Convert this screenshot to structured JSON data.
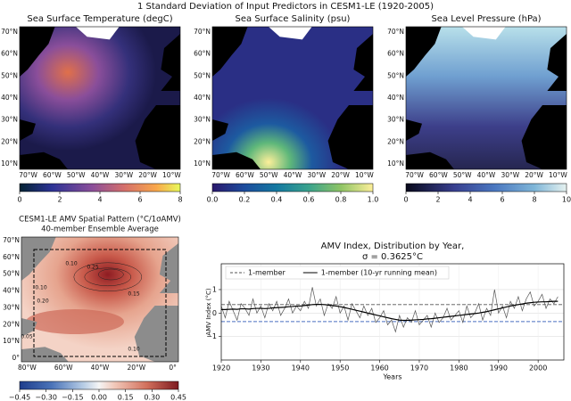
{
  "title": "1 Standard Deviation of Input Predictors in CESM1-LE (1920-2005)",
  "maps": [
    {
      "title": "Sea Surface Temperature (degC)",
      "colorbar_lim": [
        0,
        8
      ],
      "colorbar_ticks": [
        0,
        2,
        4,
        6,
        8
      ],
      "lat_labels": [
        "70°N",
        "60°N",
        "50°N",
        "40°N",
        "30°N",
        "20°N",
        "10°N"
      ],
      "lon_labels": [
        "70°W",
        "60°W",
        "50°W",
        "40°W",
        "30°W",
        "20°W",
        "10°W"
      ]
    },
    {
      "title": "Sea Surface Salinity (psu)",
      "colorbar_lim": [
        0,
        1
      ],
      "colorbar_ticks": [
        {
          "value": 0,
          "label": "0.0"
        },
        0.2,
        0.4,
        0.6,
        0.8,
        {
          "value": 1,
          "label": "1.0"
        }
      ],
      "lat_labels": [
        "70°N",
        "60°N",
        "50°N",
        "40°N",
        "30°N",
        "20°N",
        "10°N"
      ],
      "lon_labels": [
        "70°W",
        "60°W",
        "50°W",
        "40°W",
        "30°W",
        "20°W",
        "10°W"
      ]
    },
    {
      "title": "Sea Level Pressure (hPa)",
      "colorbar_lim": [
        0,
        10
      ],
      "colorbar_ticks": [
        0,
        2,
        4,
        6,
        8,
        10
      ],
      "lat_labels": [
        "70°N",
        "60°N",
        "50°N",
        "40°N",
        "30°N",
        "20°N",
        "10°N"
      ],
      "lon_labels": [
        "70°W",
        "60°W",
        "50°W",
        "40°W",
        "30°W",
        "20°W",
        "10°W"
      ]
    }
  ],
  "amv_map": {
    "title": "CESM1-LE AMV Spatial Pattern (°C/1σAMV)",
    "subtitle": "40-member Ensemble Average",
    "colorbar_lim": [
      -0.45,
      0.45
    ],
    "colorbar_ticks": [
      {
        "value": -0.45,
        "label": "−0.45"
      },
      {
        "value": -0.3,
        "label": "−0.30"
      },
      {
        "value": -0.15,
        "label": "−0.15"
      },
      {
        "value": 0,
        "label": "0.00"
      },
      {
        "value": 0.15,
        "label": "0.15"
      },
      {
        "value": 0.3,
        "label": "0.30"
      },
      {
        "value": 0.45,
        "label": "0.45"
      }
    ],
    "lat_labels": [
      "70°N",
      "60°N",
      "50°N",
      "40°N",
      "30°N",
      "20°N",
      "10°N",
      "0°"
    ],
    "lon_labels": [
      "80°W",
      "60°W",
      "40°W",
      "20°W",
      "0°"
    ],
    "contour_labels": [
      "0.25",
      "0.10",
      "0.15",
      "0.20",
      "0.10",
      "0.05",
      "0.10"
    ]
  },
  "chart_data": {
    "type": "line",
    "title": "AMV Index, Distribution by Year,",
    "subtitle": "σ = 0.3625°C",
    "x_label": "Years",
    "y_label": "AMV Index (°C)",
    "x": [
      1920,
      1921,
      1922,
      1923,
      1924,
      1925,
      1926,
      1927,
      1928,
      1929,
      1930,
      1931,
      1932,
      1933,
      1934,
      1935,
      1936,
      1937,
      1938,
      1939,
      1940,
      1941,
      1942,
      1943,
      1944,
      1945,
      1946,
      1947,
      1948,
      1949,
      1950,
      1951,
      1952,
      1953,
      1954,
      1955,
      1956,
      1957,
      1958,
      1959,
      1960,
      1961,
      1962,
      1963,
      1964,
      1965,
      1966,
      1967,
      1968,
      1969,
      1970,
      1971,
      1972,
      1973,
      1974,
      1975,
      1976,
      1977,
      1978,
      1979,
      1980,
      1981,
      1982,
      1983,
      1984,
      1985,
      1986,
      1987,
      1988,
      1989,
      1990,
      1991,
      1992,
      1993,
      1994,
      1995,
      1996,
      1997,
      1998,
      1999,
      2000,
      2001,
      2002,
      2003,
      2004,
      2005
    ],
    "series": [
      {
        "name": "1-member",
        "color": "#555555",
        "style": "dashed",
        "values": [
          0.3,
          -0.2,
          0.5,
          0.1,
          -0.3,
          0.4,
          0.2,
          -0.1,
          0.6,
          0.0,
          0.3,
          -0.2,
          0.4,
          0.1,
          0.5,
          -0.1,
          0.2,
          0.6,
          0.0,
          0.3,
          0.1,
          0.5,
          0.2,
          1.1,
          0.3,
          0.6,
          -0.1,
          0.4,
          0.2,
          0.7,
          0.0,
          0.3,
          -0.3,
          0.4,
          0.1,
          -0.2,
          0.3,
          -0.1,
          0.2,
          -0.4,
          -0.2,
          0.1,
          -0.5,
          -0.3,
          -0.8,
          -0.1,
          -0.6,
          -0.2,
          -0.4,
          0.1,
          -0.5,
          -0.3,
          -0.1,
          -0.6,
          0.0,
          -0.4,
          -0.2,
          0.2,
          -0.3,
          -0.1,
          0.1,
          -0.4,
          0.3,
          -0.2,
          0.0,
          0.4,
          -0.3,
          0.2,
          -0.1,
          1.0,
          0.0,
          0.3,
          -0.2,
          0.5,
          0.2,
          0.7,
          0.1,
          0.6,
          0.9,
          0.3,
          0.5,
          0.8,
          0.2,
          0.6,
          0.4,
          0.7
        ]
      },
      {
        "name": "1-member (10-yr running mean)",
        "color": "#000000",
        "style": "solid",
        "values": [
          0.15,
          0.15,
          0.16,
          0.17,
          0.16,
          0.18,
          0.18,
          0.17,
          0.19,
          0.2,
          0.2,
          0.19,
          0.2,
          0.22,
          0.23,
          0.24,
          0.25,
          0.27,
          0.28,
          0.3,
          0.3,
          0.32,
          0.34,
          0.36,
          0.37,
          0.37,
          0.36,
          0.34,
          0.32,
          0.3,
          0.27,
          0.24,
          0.2,
          0.16,
          0.12,
          0.08,
          0.04,
          0.0,
          -0.04,
          -0.08,
          -0.12,
          -0.16,
          -0.2,
          -0.24,
          -0.27,
          -0.3,
          -0.31,
          -0.31,
          -0.3,
          -0.29,
          -0.28,
          -0.27,
          -0.25,
          -0.24,
          -0.22,
          -0.2,
          -0.18,
          -0.16,
          -0.14,
          -0.12,
          -0.1,
          -0.08,
          -0.06,
          -0.04,
          -0.02,
          0.0,
          0.03,
          0.06,
          0.1,
          0.14,
          0.18,
          0.22,
          0.26,
          0.3,
          0.33,
          0.36,
          0.39,
          0.42,
          0.44,
          0.46,
          0.47,
          0.48,
          0.48,
          0.49,
          0.5,
          0.5
        ]
      }
    ],
    "hlines": [
      0.3625,
      -0.3625
    ],
    "xlim": [
      1920,
      2006.5
    ],
    "xticks": [
      1920,
      1930,
      1940,
      1950,
      1960,
      1970,
      1980,
      1990,
      2000
    ],
    "ylim": [
      -2,
      2.1
    ],
    "yticks": [
      {
        "value": -1,
        "label": "−1"
      },
      0,
      1
    ],
    "grid": true,
    "legend": "upper left"
  }
}
